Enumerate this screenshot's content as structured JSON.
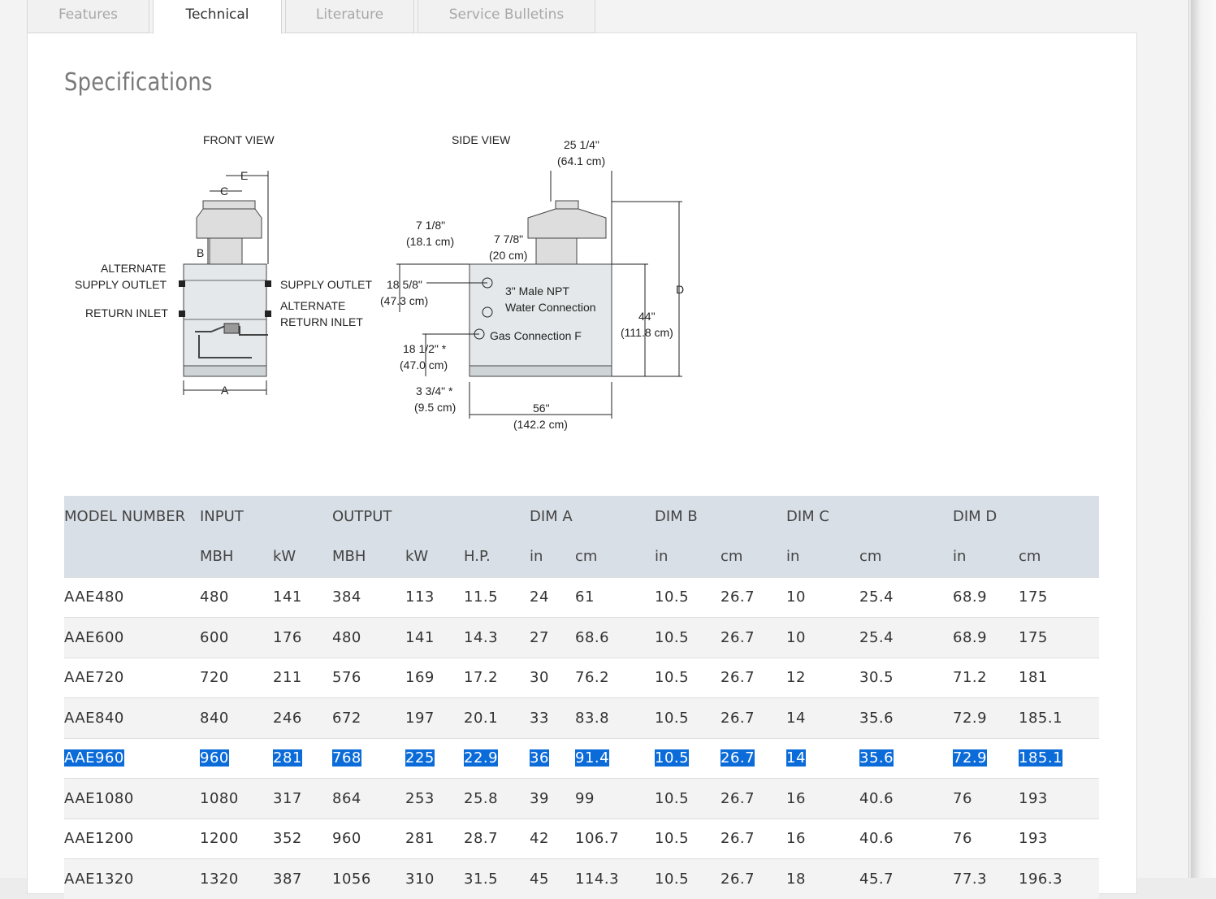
{
  "tabs": [
    {
      "label": "Features",
      "active": false
    },
    {
      "label": "Technical",
      "active": true
    },
    {
      "label": "Literature",
      "active": false
    },
    {
      "label": "Service Bulletins",
      "active": false
    }
  ],
  "section_title": "Specifications",
  "diagram": {
    "front_view_label": "FRONT VIEW",
    "side_view_label": "SIDE VIEW",
    "dim_e": "E",
    "dim_c": "C",
    "dim_b": "B",
    "dim_a": "A",
    "dim_d": "D",
    "alternate_supply_outlet_1": "ALTERNATE",
    "alternate_supply_outlet_2": "SUPPLY OUTLET",
    "return_inlet": "RETURN INLET",
    "supply_outlet": "SUPPLY OUTLET",
    "alternate_return_inlet_1": "ALTERNATE",
    "alternate_return_inlet_2": "RETURN INLET",
    "width_top_in": "25 1/4\"",
    "width_top_cm": "(64.1 cm)",
    "offset_718_in": "7 1/8\"",
    "offset_718_cm": "(18.1 cm)",
    "offset_778_in": "7 7/8\"",
    "offset_778_cm": "(20 cm)",
    "water_in": "18 5/8\"",
    "water_cm": "(47.3 cm)",
    "water_conn_1": "3\" Male NPT",
    "water_conn_2": "Water Connection",
    "gas_conn": "Gas Connection F",
    "height_in": "44\"",
    "height_cm": "(111.8 cm)",
    "gas_height_in": "18 1/2\" *",
    "gas_height_cm": "(47.0 cm)",
    "base_in": "3 3/4\" *",
    "base_cm": "(9.5 cm)",
    "length_in": "56\"",
    "length_cm": "(142.2 cm)"
  },
  "table": {
    "groups": [
      "MODEL NUMBER",
      "INPUT",
      "OUTPUT",
      "DIM A",
      "DIM B",
      "DIM C",
      "DIM D"
    ],
    "units": [
      "",
      "MBH",
      "kW",
      "MBH",
      "kW",
      "H.P.",
      "in",
      "cm",
      "in",
      "cm",
      "in",
      "cm",
      "in",
      "cm"
    ],
    "rows": [
      [
        "AAE480",
        "480",
        "141",
        "384",
        "113",
        "11.5",
        "24",
        "61",
        "10.5",
        "26.7",
        "10",
        "25.4",
        "68.9",
        "175"
      ],
      [
        "AAE600",
        "600",
        "176",
        "480",
        "141",
        "14.3",
        "27",
        "68.6",
        "10.5",
        "26.7",
        "10",
        "25.4",
        "68.9",
        "175"
      ],
      [
        "AAE720",
        "720",
        "211",
        "576",
        "169",
        "17.2",
        "30",
        "76.2",
        "10.5",
        "26.7",
        "12",
        "30.5",
        "71.2",
        "181"
      ],
      [
        "AAE840",
        "840",
        "246",
        "672",
        "197",
        "20.1",
        "33",
        "83.8",
        "10.5",
        "26.7",
        "14",
        "35.6",
        "72.9",
        "185.1"
      ],
      [
        "AAE960",
        "960",
        "281",
        "768",
        "225",
        "22.9",
        "36",
        "91.4",
        "10.5",
        "26.7",
        "14",
        "35.6",
        "72.9",
        "185.1"
      ],
      [
        "AAE1080",
        "1080",
        "317",
        "864",
        "253",
        "25.8",
        "39",
        "99",
        "10.5",
        "26.7",
        "16",
        "40.6",
        "76",
        "193"
      ],
      [
        "AAE1200",
        "1200",
        "352",
        "960",
        "281",
        "28.7",
        "42",
        "106.7",
        "10.5",
        "26.7",
        "16",
        "40.6",
        "76",
        "193"
      ],
      [
        "AAE1320",
        "1320",
        "387",
        "1056",
        "310",
        "31.5",
        "45",
        "114.3",
        "10.5",
        "26.7",
        "18",
        "45.7",
        "77.3",
        "196.3"
      ]
    ],
    "selected_row": 4
  },
  "colors": {
    "header_bg": "#d8dfe6",
    "selection": "#0a6bd9"
  }
}
